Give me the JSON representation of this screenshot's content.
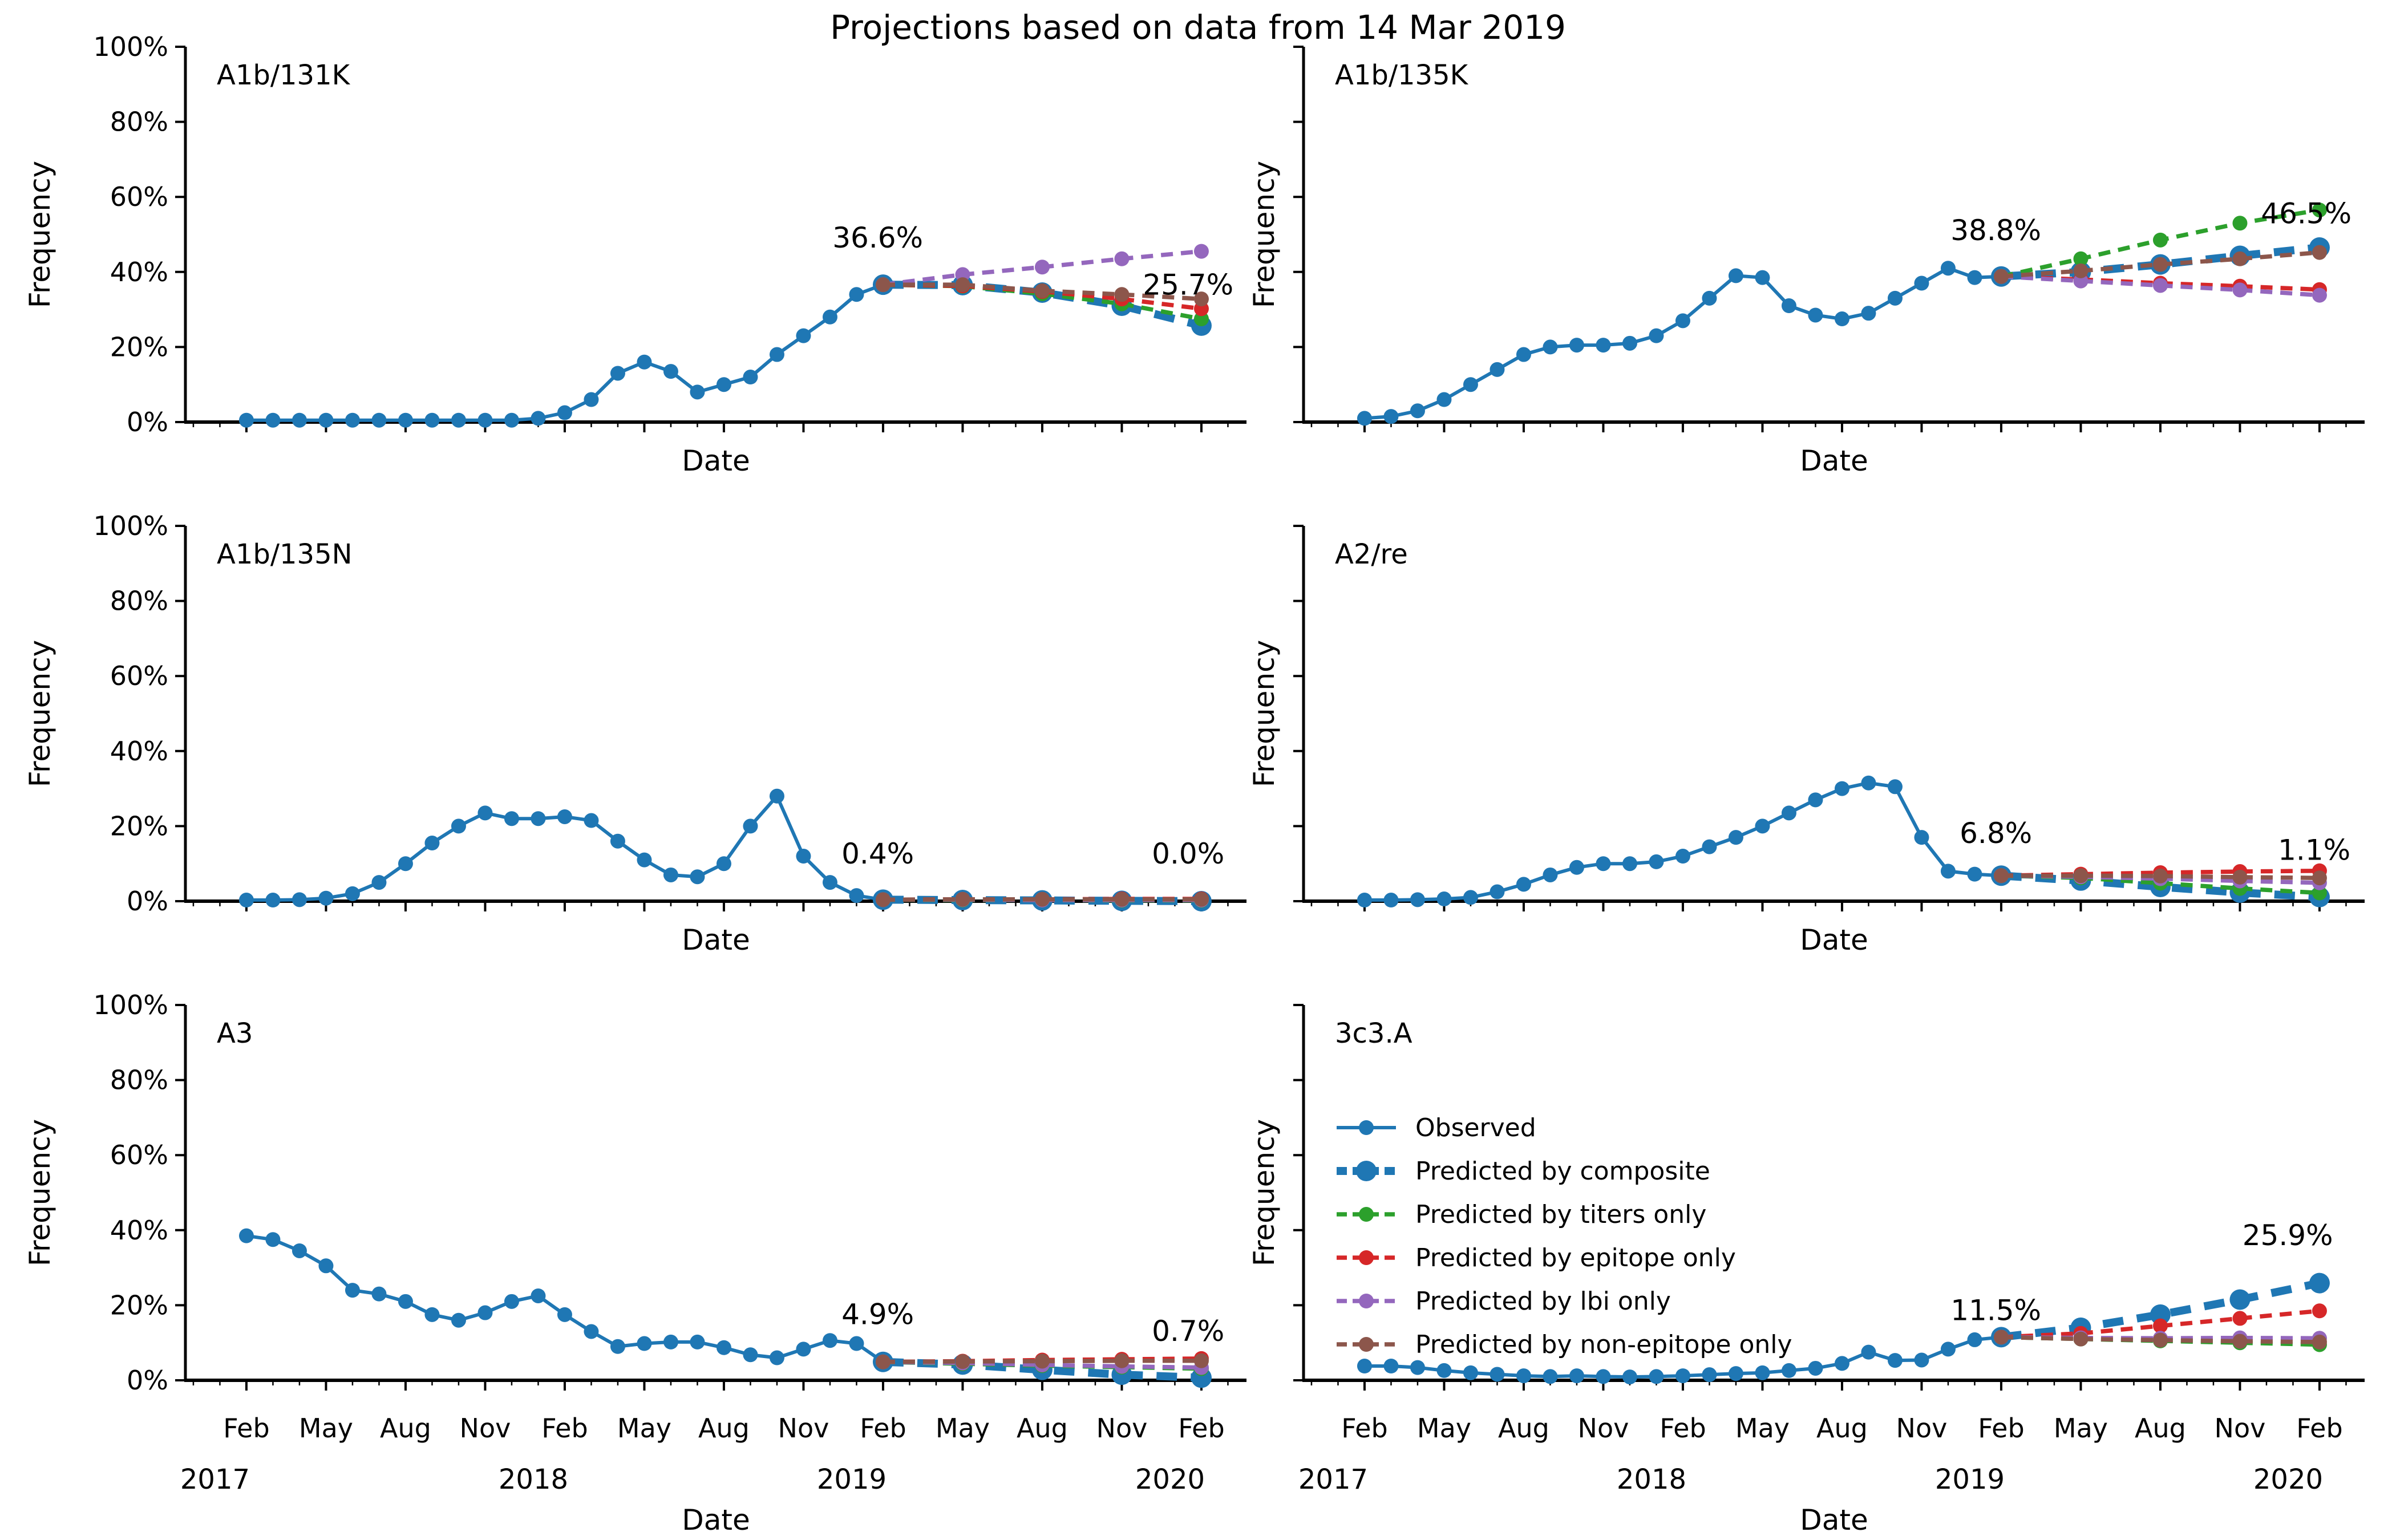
{
  "title": "Projections based on data from 14 Mar 2019",
  "axes": {
    "xlabel": "Date",
    "ylabel": "Frequency",
    "ytick_labels": [
      "0%",
      "20%",
      "40%",
      "60%",
      "80%",
      "100%"
    ],
    "xtick_month_labels": [
      "Feb",
      "May",
      "Aug",
      "Nov",
      "Feb",
      "May",
      "Aug",
      "Nov",
      "Feb",
      "May",
      "Aug",
      "Nov",
      "Feb"
    ],
    "xtick_year_labels": [
      {
        "label": "2017",
        "month": 0
      },
      {
        "label": "2018",
        "month": 12
      },
      {
        "label": "2019",
        "month": 24
      },
      {
        "label": "2020",
        "month": 36
      }
    ],
    "x_unit": "months since Feb 2017",
    "xlim_months": [
      -2.3,
      37.7
    ],
    "ylim": [
      0,
      100
    ],
    "grid": false
  },
  "colors": {
    "observed": "#1f77b4",
    "composite": "#1f77b4",
    "titers_only": "#2ca02c",
    "epitope_only": "#d62728",
    "lbi_only": "#9467bd",
    "non_epitope_only": "#8c564b",
    "text": "#000000",
    "background": "#ffffff"
  },
  "legend": {
    "entries": [
      {
        "label": "Observed",
        "series": "observed"
      },
      {
        "label": "Predicted by composite",
        "series": "composite"
      },
      {
        "label": "Predicted by titers only",
        "series": "titers_only"
      },
      {
        "label": "Predicted by epitope only",
        "series": "epitope_only"
      },
      {
        "label": "Predicted by lbi only",
        "series": "lbi_only"
      },
      {
        "label": "Predicted by non-epitope only",
        "series": "non_epitope_only"
      }
    ],
    "location": "center-left of bottom-right panel",
    "frame": false
  },
  "chart_data": [
    {
      "type": "line",
      "title": "A1b/131K",
      "observed": {
        "start_month": 0,
        "values": [
          0.5,
          0.5,
          0.5,
          0.5,
          0.5,
          0.5,
          0.5,
          0.5,
          0.5,
          0.5,
          0.5,
          1,
          2.5,
          6,
          13,
          16,
          13.5,
          8,
          10,
          12,
          18,
          23,
          28,
          34,
          36.6
        ]
      },
      "predicted": {
        "x": [
          24,
          27,
          30,
          33,
          36
        ],
        "composite": [
          36.6,
          36.5,
          34.5,
          31.0,
          25.7
        ],
        "titers_only": [
          36.6,
          36.2,
          34.2,
          31.5,
          27.5
        ],
        "epitope_only": [
          36.6,
          36.3,
          34.8,
          32.8,
          30.2
        ],
        "lbi_only": [
          36.6,
          39.3,
          41.3,
          43.5,
          45.5
        ],
        "non_epitope_only": [
          36.6,
          36.6,
          35.0,
          34.0,
          32.8
        ]
      },
      "annotations": [
        {
          "text": "36.6%",
          "month": 23.8,
          "pct": 46.5
        },
        {
          "text": "25.7%",
          "month": 35.5,
          "pct": 34.0
        }
      ]
    },
    {
      "type": "line",
      "title": "A1b/135K",
      "observed": {
        "start_month": 0,
        "values": [
          1,
          1.5,
          3,
          6,
          10,
          14,
          18,
          20,
          20.5,
          20.5,
          21,
          23,
          27,
          33,
          39,
          38.5,
          31,
          28.5,
          27.5,
          29,
          33,
          37,
          41,
          38.5,
          38.8
        ]
      },
      "predicted": {
        "x": [
          24,
          27,
          30,
          33,
          36
        ],
        "composite": [
          38.8,
          40.0,
          42.0,
          44.3,
          46.5
        ],
        "titers_only": [
          38.8,
          43.5,
          48.5,
          53.0,
          56.5
        ],
        "epitope_only": [
          38.8,
          38.0,
          37.0,
          36.2,
          35.3
        ],
        "lbi_only": [
          38.8,
          37.6,
          36.4,
          35.2,
          33.8
        ],
        "non_epitope_only": [
          38.8,
          40.3,
          42.0,
          43.5,
          45.2
        ]
      },
      "annotations": [
        {
          "text": "38.8%",
          "month": 23.8,
          "pct": 48.5
        },
        {
          "text": "46.5%",
          "month": 35.5,
          "pct": 53.0
        }
      ]
    },
    {
      "type": "line",
      "title": "A1b/135N",
      "observed": {
        "start_month": 0,
        "values": [
          0.3,
          0.3,
          0.4,
          0.8,
          2,
          5,
          10,
          15.5,
          20,
          23.5,
          22,
          22,
          22.5,
          21.5,
          16,
          11,
          7,
          6.5,
          10,
          20,
          28,
          12,
          5,
          1.5,
          0.4
        ]
      },
      "predicted": {
        "x": [
          24,
          27,
          30,
          33,
          36
        ],
        "composite": [
          0.4,
          0.3,
          0.2,
          0.1,
          0.0
        ],
        "titers_only": [
          0.4,
          0.3,
          0.3,
          0.2,
          0.2
        ],
        "epitope_only": [
          0.4,
          0.5,
          0.5,
          0.6,
          0.6
        ],
        "lbi_only": [
          0.4,
          0.4,
          0.3,
          0.3,
          0.3
        ],
        "non_epitope_only": [
          0.4,
          0.5,
          0.5,
          0.5,
          0.5
        ]
      },
      "annotations": [
        {
          "text": "0.4%",
          "month": 23.8,
          "pct": 10.0
        },
        {
          "text": "0.0%",
          "month": 35.5,
          "pct": 10.0
        }
      ]
    },
    {
      "type": "line",
      "title": "A2/re",
      "observed": {
        "start_month": 0,
        "values": [
          0.3,
          0.3,
          0.4,
          0.6,
          1,
          2.5,
          4.5,
          7,
          9,
          10,
          10,
          10.5,
          12,
          14.5,
          17,
          20,
          23.5,
          27,
          30,
          31.5,
          30.5,
          17,
          8,
          7.2,
          6.8
        ]
      },
      "predicted": {
        "x": [
          24,
          27,
          30,
          33,
          36
        ],
        "composite": [
          6.8,
          5.5,
          3.8,
          2.3,
          1.1
        ],
        "titers_only": [
          6.8,
          6.2,
          4.8,
          3.4,
          2.2
        ],
        "epitope_only": [
          6.8,
          7.2,
          7.6,
          7.9,
          8.1
        ],
        "lbi_only": [
          6.8,
          6.5,
          6.0,
          5.4,
          4.9
        ],
        "non_epitope_only": [
          6.8,
          6.8,
          6.7,
          6.4,
          6.2
        ]
      },
      "annotations": [
        {
          "text": "6.8%",
          "month": 23.8,
          "pct": 15.5
        },
        {
          "text": "1.1%",
          "month": 35.8,
          "pct": 11.0
        }
      ]
    },
    {
      "type": "line",
      "title": "A3",
      "observed": {
        "start_month": 0,
        "values": [
          38.5,
          37.5,
          34.5,
          30.5,
          24,
          23,
          21,
          17.5,
          16,
          18,
          21,
          22.5,
          17.5,
          13,
          9,
          9.8,
          10.2,
          10.2,
          8.7,
          6.8,
          6,
          8.3,
          10.6,
          9.8,
          4.9
        ]
      },
      "predicted": {
        "x": [
          24,
          27,
          30,
          33,
          36
        ],
        "composite": [
          4.9,
          4.2,
          2.8,
          1.5,
          0.7
        ],
        "titers_only": [
          4.9,
          4.4,
          3.9,
          3.5,
          3.1
        ],
        "epitope_only": [
          4.9,
          5.1,
          5.4,
          5.6,
          5.8
        ],
        "lbi_only": [
          4.9,
          4.6,
          4.1,
          3.7,
          3.4
        ],
        "non_epitope_only": [
          4.9,
          5.0,
          5.1,
          5.2,
          5.2
        ]
      },
      "annotations": [
        {
          "text": "4.9%",
          "month": 23.8,
          "pct": 15.0
        },
        {
          "text": "0.7%",
          "month": 35.5,
          "pct": 10.5
        }
      ]
    },
    {
      "type": "line",
      "title": "3c3.A",
      "observed": {
        "start_month": 0,
        "values": [
          3.8,
          3.8,
          3.4,
          2.6,
          2,
          1.6,
          1.2,
          1,
          1.2,
          1,
          0.9,
          1,
          1.2,
          1.5,
          1.8,
          2,
          2.6,
          3.2,
          4.5,
          7.5,
          5.3,
          5.4,
          8.3,
          10.8,
          11.5
        ]
      },
      "predicted": {
        "x": [
          24,
          27,
          30,
          33,
          36
        ],
        "composite": [
          11.5,
          14.0,
          17.5,
          21.5,
          25.9
        ],
        "titers_only": [
          11.5,
          11.0,
          10.5,
          10.0,
          9.5
        ],
        "epitope_only": [
          11.5,
          12.5,
          14.5,
          16.5,
          18.5
        ],
        "lbi_only": [
          11.5,
          11.3,
          11.2,
          11.3,
          11.2
        ],
        "non_epitope_only": [
          11.5,
          11.0,
          10.7,
          10.4,
          10.2
        ]
      },
      "annotations": [
        {
          "text": "11.5%",
          "month": 23.8,
          "pct": 16.0
        },
        {
          "text": "25.9%",
          "month": 34.8,
          "pct": 36.0
        }
      ],
      "has_legend": true
    }
  ]
}
